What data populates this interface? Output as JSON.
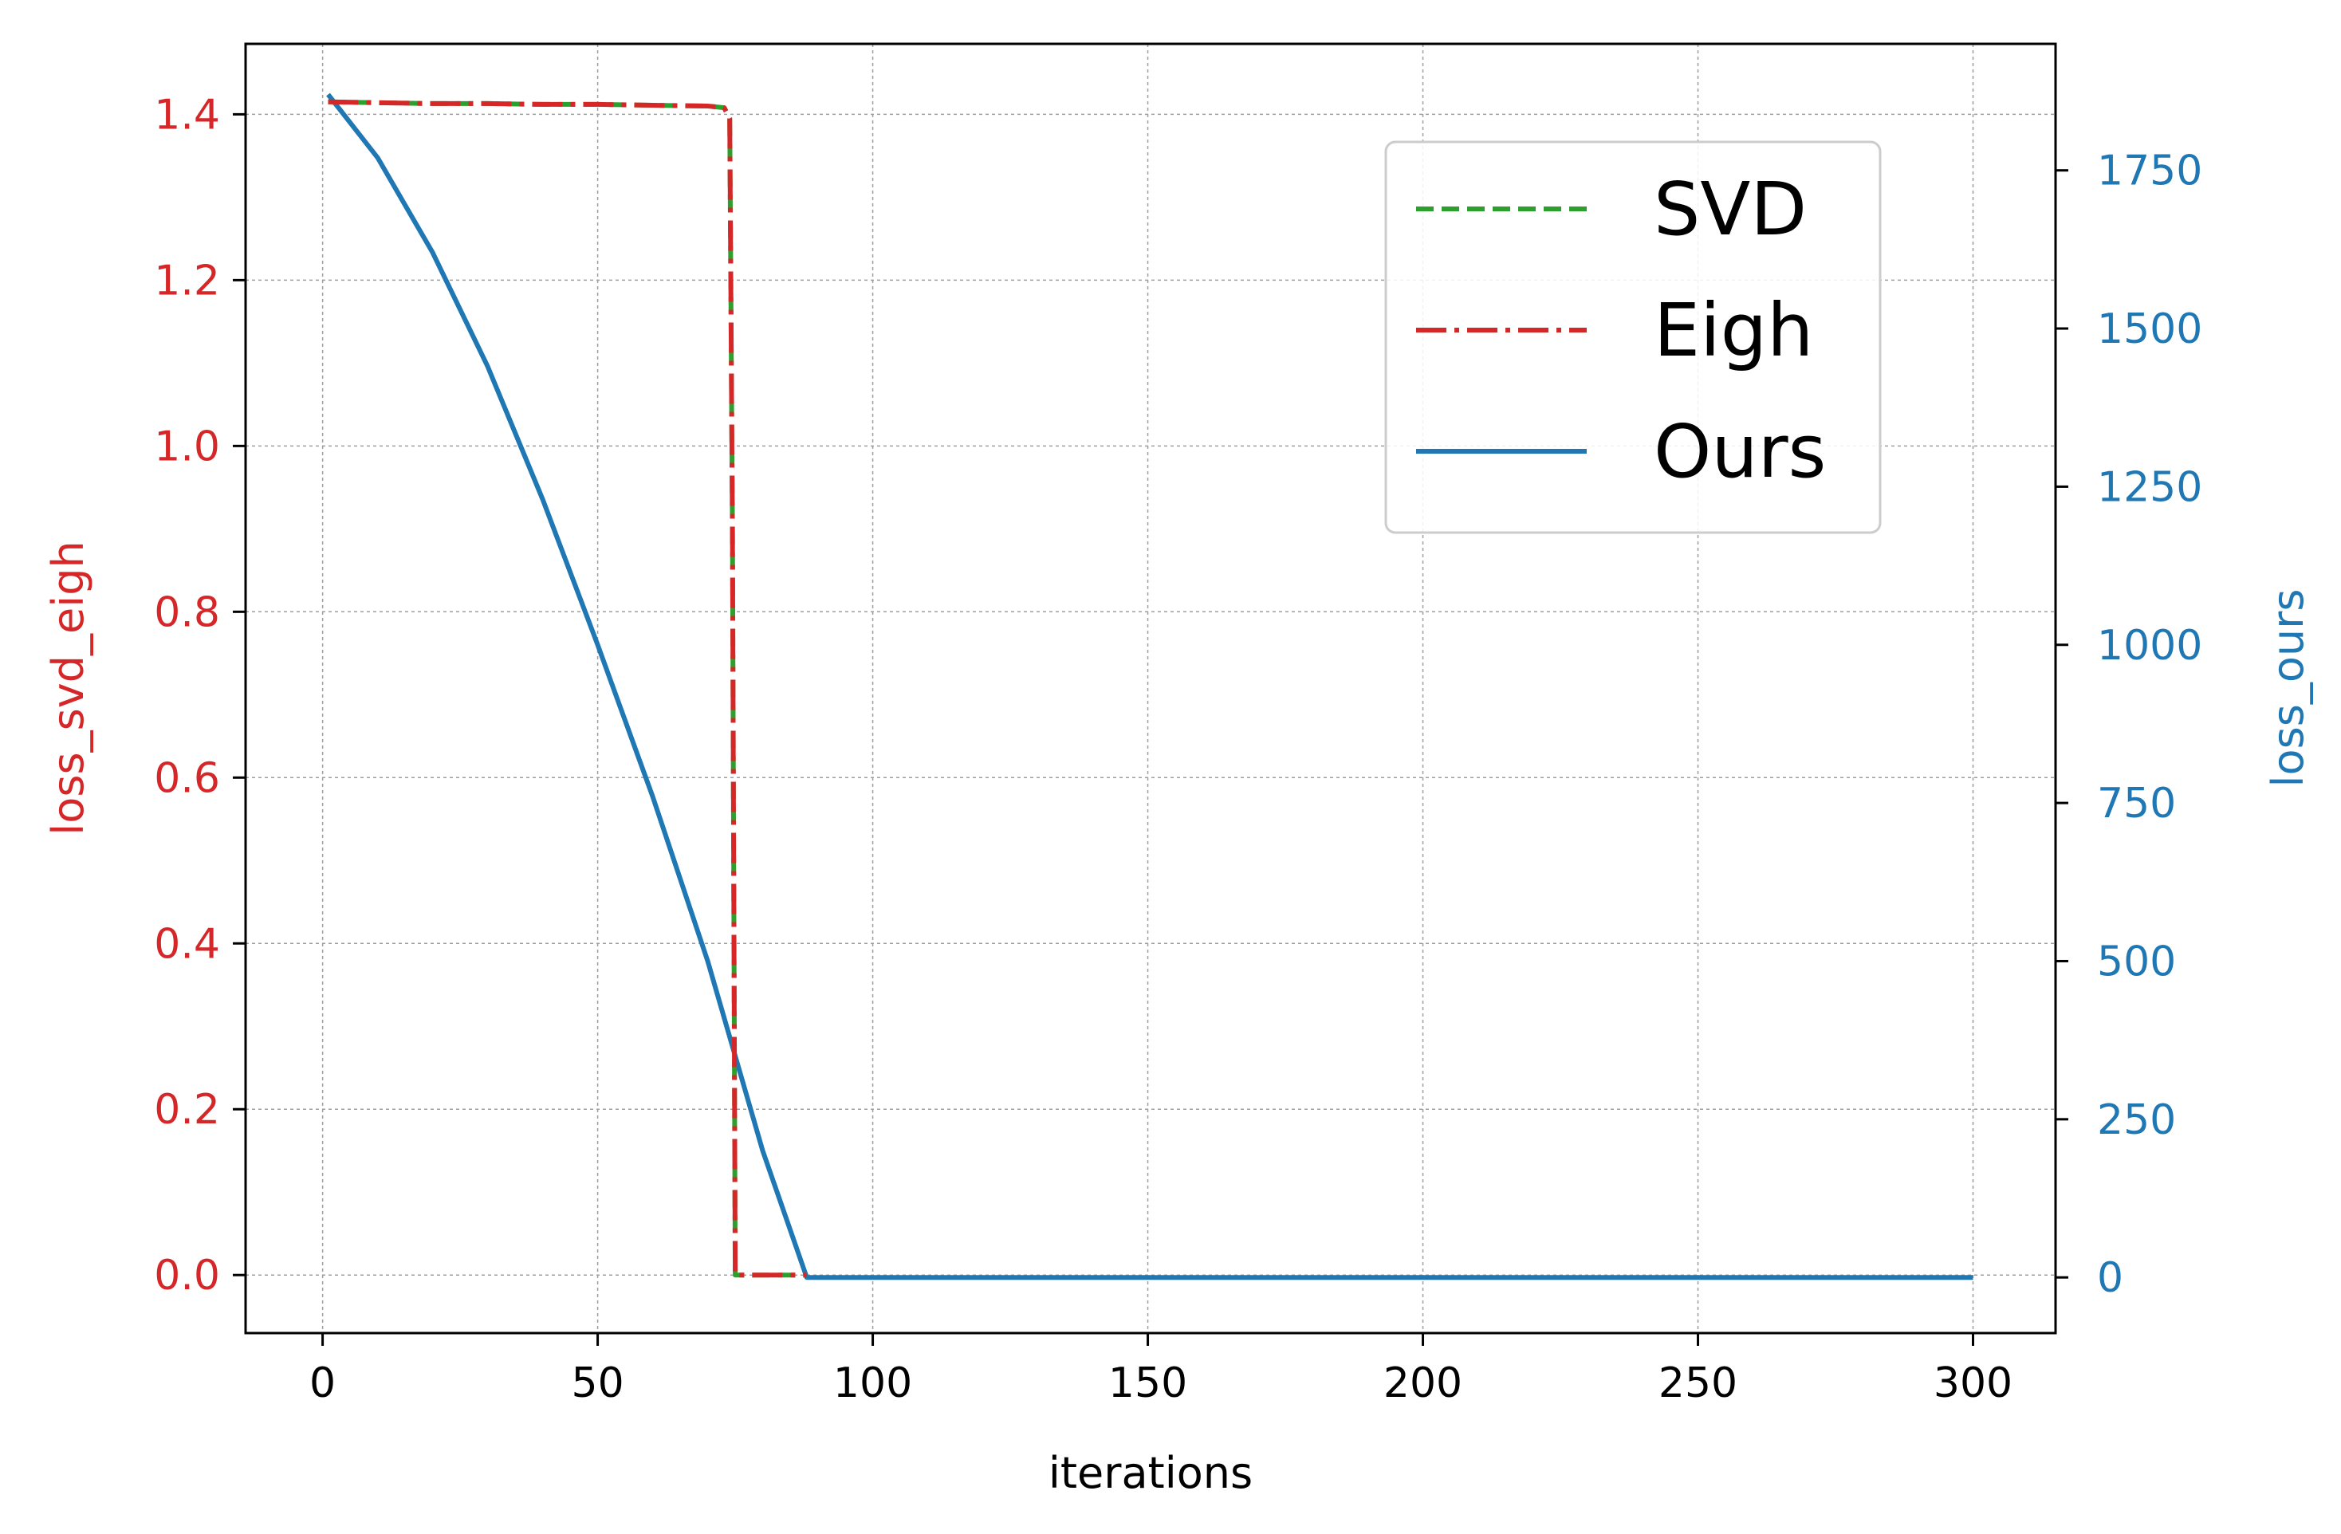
{
  "chart_data": {
    "type": "line",
    "title": "",
    "xlabel": "iterations",
    "ylabel_left": "loss_svd_eigh",
    "ylabel_right": "loss_ours",
    "xlim": [
      -14,
      315
    ],
    "ylim_left": [
      -0.07,
      1.485
    ],
    "ylim_right": [
      -88,
      1950
    ],
    "x_ticks": [
      0,
      50,
      100,
      150,
      200,
      250,
      300
    ],
    "y_left_ticks": [
      "0.0",
      "0.2",
      "0.4",
      "0.6",
      "0.8",
      "1.0",
      "1.2",
      "1.4"
    ],
    "y_right_ticks": [
      "0",
      "250",
      "500",
      "750",
      "1000",
      "1250",
      "1500",
      "1750"
    ],
    "grid": true,
    "legend_position": "upper right",
    "colors": {
      "svd": "#2ca02c",
      "eigh": "#d62728",
      "ours": "#1f77b4",
      "grid": "#9e9e9e",
      "axis": "#000000"
    },
    "series": [
      {
        "name": "SVD",
        "axis": "left",
        "style": "dashed",
        "x": [
          1,
          10,
          20,
          30,
          40,
          50,
          60,
          70,
          73,
          74,
          74.5,
          75,
          80,
          88
        ],
        "values": [
          1.415,
          1.414,
          1.413,
          1.413,
          1.412,
          1.412,
          1.411,
          1.41,
          1.408,
          1.395,
          0.9,
          0.0,
          0.0,
          0.0
        ]
      },
      {
        "name": "Eigh",
        "axis": "left",
        "style": "dashdot",
        "x": [
          1,
          10,
          20,
          30,
          40,
          50,
          60,
          70,
          73,
          74,
          74.5,
          75,
          80,
          88
        ],
        "values": [
          1.415,
          1.414,
          1.413,
          1.413,
          1.412,
          1.412,
          1.411,
          1.41,
          1.408,
          1.395,
          0.9,
          0.0,
          0.0,
          0.0
        ]
      },
      {
        "name": "Ours",
        "axis": "right",
        "style": "solid",
        "x": [
          1,
          10,
          20,
          30,
          40,
          50,
          60,
          70,
          80,
          88,
          100,
          150,
          200,
          250,
          300
        ],
        "values": [
          1870,
          1770,
          1620,
          1440,
          1230,
          1000,
          760,
          500,
          200,
          0,
          0,
          0,
          0,
          0,
          0
        ]
      }
    ]
  }
}
